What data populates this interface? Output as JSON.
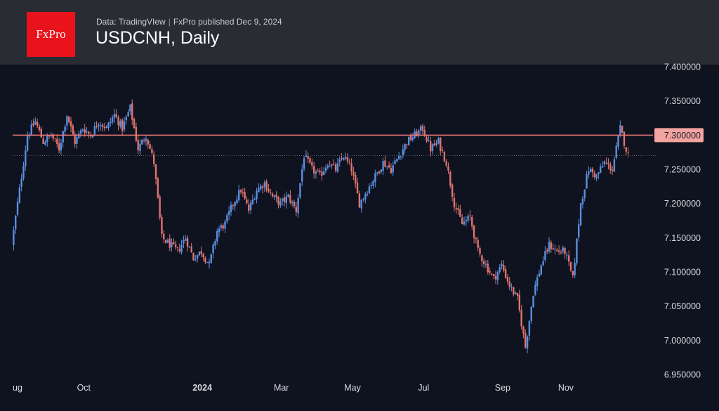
{
  "header": {
    "logo_text": "FxPro",
    "source": "Data: TradingVIew",
    "separator": "|",
    "published": "FxPro published Dec 9, 2024",
    "title": "USDCNH, Daily"
  },
  "colors": {
    "background": "#0f1320",
    "header_bg": "#2a2c33",
    "logo_bg": "#e8131b",
    "up_candle": "#5b8fe0",
    "down_candle": "#e0736d",
    "level_line": "#f07878",
    "price_label_bg": "#f3a3a0"
  },
  "chart_data": {
    "type": "candlestick",
    "symbol": "USDCNH",
    "timeframe": "Daily",
    "y_axis": {
      "range": [
        6.95,
        7.4
      ],
      "ticks": [
        "7.400000",
        "7.350000",
        "7.300000",
        "7.250000",
        "7.200000",
        "7.150000",
        "7.100000",
        "7.050000",
        "7.000000",
        "6.950000"
      ]
    },
    "x_axis": {
      "ticks": [
        {
          "label": "ug",
          "bold": false
        },
        {
          "label": "Oct",
          "bold": false
        },
        {
          "label": "2024",
          "bold": true
        },
        {
          "label": "Mar",
          "bold": false
        },
        {
          "label": "May",
          "bold": false
        },
        {
          "label": "Jul",
          "bold": false
        },
        {
          "label": "Sep",
          "bold": false
        },
        {
          "label": "Nov",
          "bold": false
        }
      ]
    },
    "horizontal_level": {
      "value": 7.3,
      "label": "7.300000"
    },
    "last_close": 7.27,
    "price_path": [
      [
        "ug",
        7.14
      ],
      [
        "",
        7.22
      ],
      [
        "",
        7.3
      ],
      [
        "",
        7.32
      ],
      [
        "",
        7.29
      ],
      [
        "",
        7.3
      ],
      [
        "",
        7.28
      ],
      [
        "",
        7.33
      ],
      [
        "",
        7.29
      ],
      [
        "Oct",
        7.31
      ],
      [
        "",
        7.3
      ],
      [
        "",
        7.32
      ],
      [
        "",
        7.31
      ],
      [
        "",
        7.33
      ],
      [
        "",
        7.31
      ],
      [
        "",
        7.34
      ],
      [
        "",
        7.28
      ],
      [
        "",
        7.3
      ],
      [
        "",
        7.26
      ],
      [
        "",
        7.15
      ],
      [
        "",
        7.14
      ],
      [
        "",
        7.13
      ],
      [
        "",
        7.15
      ],
      [
        "",
        7.12
      ],
      [
        "2024",
        7.13
      ],
      [
        "",
        7.11
      ],
      [
        "",
        7.16
      ],
      [
        "",
        7.17
      ],
      [
        "",
        7.2
      ],
      [
        "",
        7.22
      ],
      [
        "",
        7.19
      ],
      [
        "",
        7.22
      ],
      [
        "",
        7.23
      ],
      [
        "",
        7.21
      ],
      [
        "Mar",
        7.2
      ],
      [
        "",
        7.21
      ],
      [
        "",
        7.19
      ],
      [
        "",
        7.27
      ],
      [
        "",
        7.25
      ],
      [
        "",
        7.24
      ],
      [
        "",
        7.26
      ],
      [
        "",
        7.25
      ],
      [
        "",
        7.27
      ],
      [
        "May",
        7.25
      ],
      [
        "",
        7.2
      ],
      [
        "",
        7.22
      ],
      [
        "",
        7.24
      ],
      [
        "",
        7.26
      ],
      [
        "",
        7.25
      ],
      [
        "",
        7.27
      ],
      [
        "",
        7.29
      ],
      [
        "",
        7.3
      ],
      [
        "Jul",
        7.31
      ],
      [
        "",
        7.28
      ],
      [
        "",
        7.29
      ],
      [
        "",
        7.26
      ],
      [
        "",
        7.2
      ],
      [
        "",
        7.17
      ],
      [
        "",
        7.18
      ],
      [
        "",
        7.13
      ],
      [
        "",
        7.11
      ],
      [
        "",
        7.09
      ],
      [
        "Sep",
        7.11
      ],
      [
        "",
        7.08
      ],
      [
        "",
        7.06
      ],
      [
        "",
        6.99
      ],
      [
        "",
        7.07
      ],
      [
        "",
        7.11
      ],
      [
        "",
        7.14
      ],
      [
        "",
        7.13
      ],
      [
        "Nov",
        7.13
      ],
      [
        "",
        7.09
      ],
      [
        "",
        7.2
      ],
      [
        "",
        7.25
      ],
      [
        "",
        7.24
      ],
      [
        "",
        7.26
      ],
      [
        "",
        7.25
      ],
      [
        "",
        7.31
      ],
      [
        "",
        7.27
      ]
    ]
  }
}
